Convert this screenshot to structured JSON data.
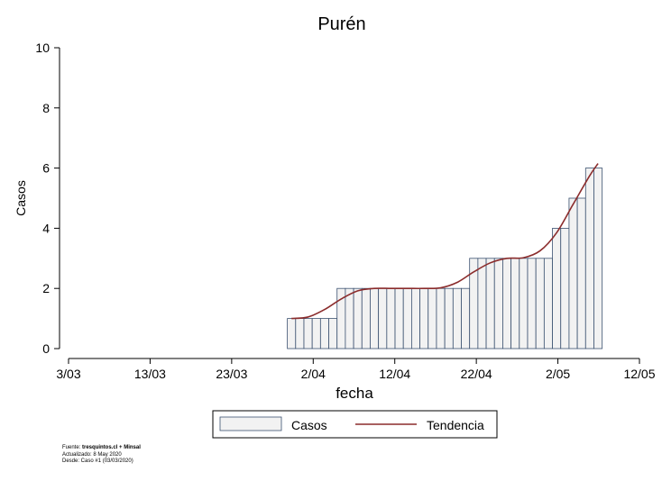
{
  "chart_data": {
    "type": "bar",
    "title": "Purén",
    "xlabel": "fecha",
    "ylabel": "Casos",
    "ylim": [
      0,
      10
    ],
    "yticks": [
      0,
      2,
      4,
      6,
      8,
      10
    ],
    "xlim": [
      "2020-03-03",
      "2020-05-12"
    ],
    "xticks": [
      "3/03",
      "13/03",
      "23/03",
      "2/04",
      "12/04",
      "22/04",
      "2/05",
      "12/05"
    ],
    "grid": false,
    "legend_position": "bottom",
    "bar_color": "#f2f2f2",
    "bar_edge_color": "#3b5170",
    "line_color": "#8b2c2c",
    "series": [
      {
        "name": "Casos",
        "type": "bar",
        "x": [
          "2020-03-31",
          "2020-04-01",
          "2020-04-02",
          "2020-04-03",
          "2020-04-04",
          "2020-04-05",
          "2020-04-06",
          "2020-04-07",
          "2020-04-08",
          "2020-04-09",
          "2020-04-10",
          "2020-04-11",
          "2020-04-12",
          "2020-04-13",
          "2020-04-14",
          "2020-04-15",
          "2020-04-16",
          "2020-04-17",
          "2020-04-18",
          "2020-04-19",
          "2020-04-20",
          "2020-04-21",
          "2020-04-22",
          "2020-04-23",
          "2020-04-24",
          "2020-04-25",
          "2020-04-26",
          "2020-04-27",
          "2020-04-28",
          "2020-04-29",
          "2020-04-30",
          "2020-05-01",
          "2020-05-02",
          "2020-05-03",
          "2020-05-04",
          "2020-05-05",
          "2020-05-06",
          "2020-05-07"
        ],
        "values": [
          1,
          1,
          1,
          1,
          1,
          1,
          2,
          2,
          2,
          2,
          2,
          2,
          2,
          2,
          2,
          2,
          2,
          2,
          2,
          2,
          2,
          2,
          3,
          3,
          3,
          3,
          3,
          3,
          3,
          3,
          3,
          3,
          4,
          4,
          5,
          5,
          6,
          6
        ]
      },
      {
        "name": "Tendencia",
        "type": "line",
        "x": [
          "2020-03-31",
          "2020-04-02",
          "2020-04-04",
          "2020-04-06",
          "2020-04-08",
          "2020-04-10",
          "2020-04-12",
          "2020-04-14",
          "2020-04-16",
          "2020-04-18",
          "2020-04-20",
          "2020-04-22",
          "2020-04-24",
          "2020-04-26",
          "2020-04-28",
          "2020-04-30",
          "2020-05-02",
          "2020-05-04",
          "2020-05-06",
          "2020-05-07"
        ],
        "values": [
          1.0,
          1.05,
          1.3,
          1.65,
          1.92,
          2.0,
          2.0,
          2.0,
          2.0,
          2.02,
          2.2,
          2.55,
          2.85,
          3.0,
          3.02,
          3.25,
          3.85,
          4.8,
          5.75,
          6.15
        ]
      }
    ]
  },
  "footnote": {
    "source_prefix": "Fuente: ",
    "source_bold": "tresquintos.cl + Minsal",
    "updated": "Actualizado: 8 May 2020",
    "since": "Desde: Caso #1  (03/03/2020)"
  }
}
